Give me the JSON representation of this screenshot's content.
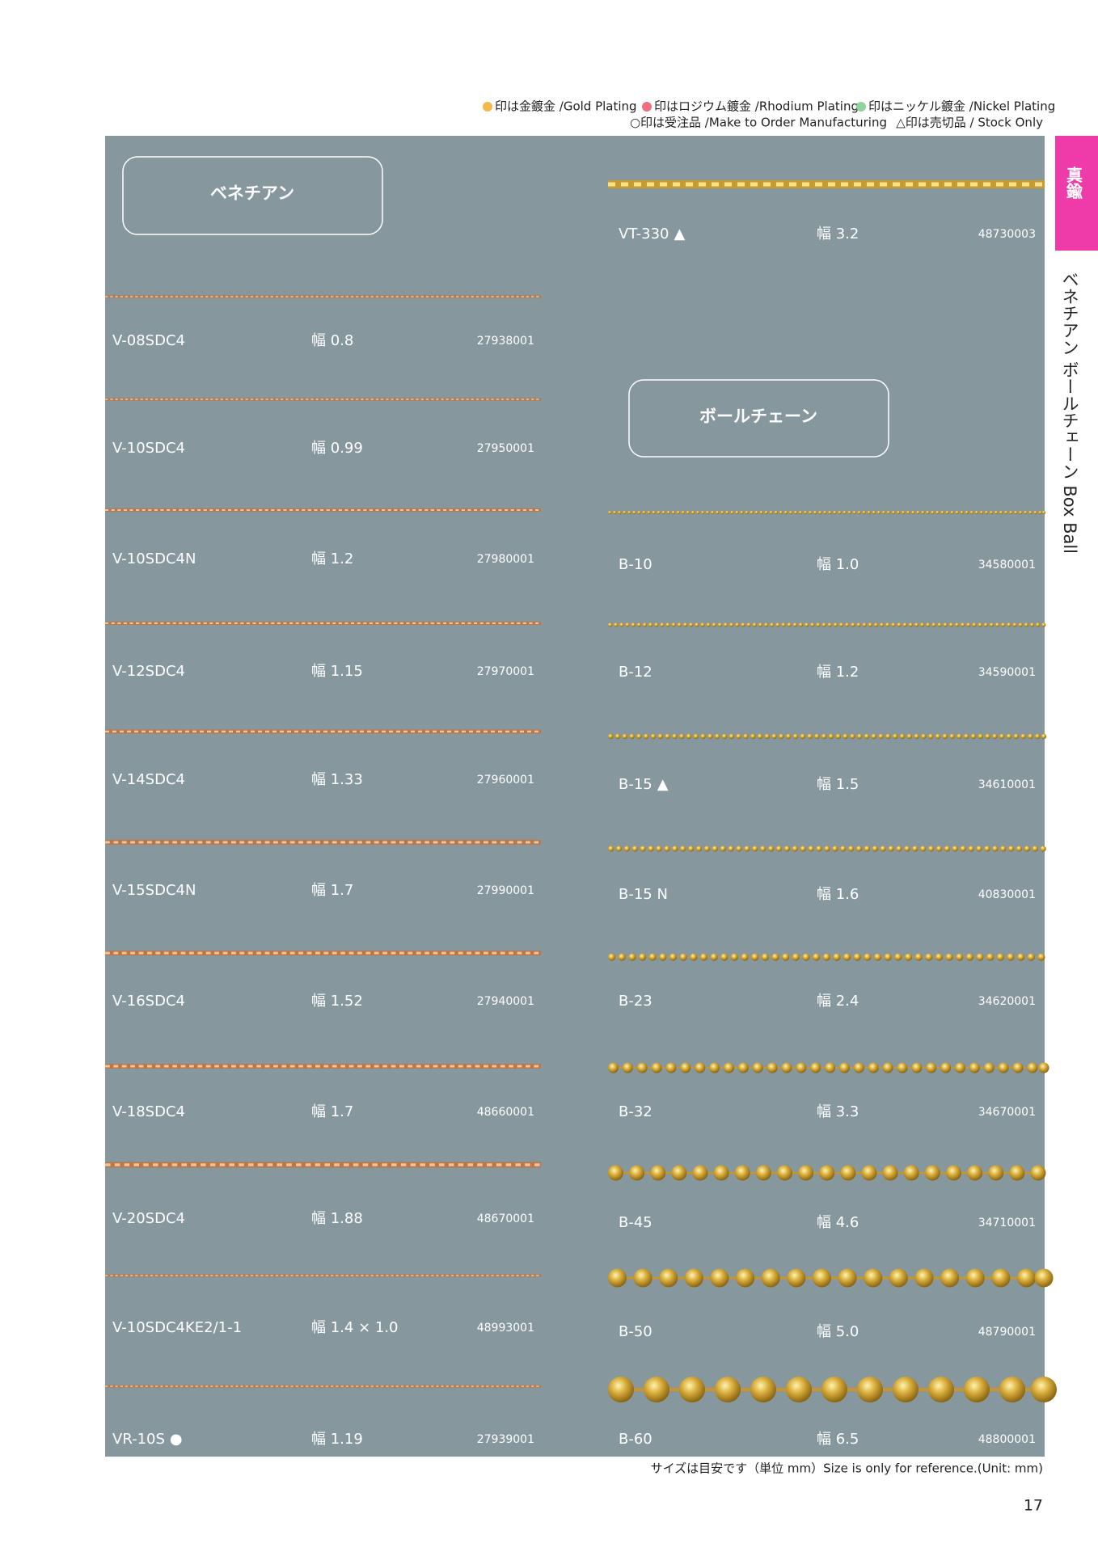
{
  "legend": {
    "gold": "印は金鍍金 /Gold Plating",
    "rhodium": "印はロジウム鍍金 /Rhodium Plating",
    "nickel": "印はニッケル鍍金 /Nickel Plating",
    "make_to_order": "○印は受注品 /Make to Order Manufacturing",
    "stock_only": "△印は売切品 / Stock Only"
  },
  "side_tab": "真鍮",
  "side_title": "ベネチアン ボールチェーン Box Ball",
  "venetian": {
    "title": "ベネチアン",
    "items": [
      {
        "code": "V-08SDC4",
        "width": "幅 0.8",
        "number": "27938001"
      },
      {
        "code": "V-10SDC4",
        "width": "幅 0.99",
        "number": "27950001"
      },
      {
        "code": "V-10SDC4N",
        "width": "幅 1.2",
        "number": "27980001"
      },
      {
        "code": "V-12SDC4",
        "width": "幅 1.15",
        "number": "27970001"
      },
      {
        "code": "V-14SDC4",
        "width": "幅 1.33",
        "number": "27960001"
      },
      {
        "code": "V-15SDC4N",
        "width": "幅 1.7",
        "number": "27990001"
      },
      {
        "code": "V-16SDC4",
        "width": "幅 1.52",
        "number": "27940001"
      },
      {
        "code": "V-18SDC4",
        "width": "幅 1.7",
        "number": "48660001"
      },
      {
        "code": "V-20SDC4",
        "width": "幅 1.88",
        "number": "48670001"
      },
      {
        "code": "V-10SDC4KE2/1-1",
        "width": "幅 1.4 × 1.0",
        "number": "48993001"
      },
      {
        "code": "VR-10S",
        "symbol": "●",
        "width": "幅 1.19",
        "number": "27939001"
      },
      {
        "code": "VT-330",
        "symbol": "▲",
        "width": "幅 3.2",
        "number": "48730003"
      }
    ]
  },
  "ball_chain": {
    "title": "ボールチェーン",
    "items": [
      {
        "code": "B-10",
        "width": "幅 1.0",
        "number": "34580001"
      },
      {
        "code": "B-12",
        "width": "幅 1.2",
        "number": "34590001"
      },
      {
        "code": "B-15",
        "symbol": "▲",
        "width": "幅 1.5",
        "number": "34610001"
      },
      {
        "code": "B-15 N",
        "width": "幅 1.6",
        "number": "40830001"
      },
      {
        "code": "B-23",
        "width": "幅 2.4",
        "number": "34620001"
      },
      {
        "code": "B-32",
        "width": "幅 3.3",
        "number": "34670001"
      },
      {
        "code": "B-45",
        "width": "幅 4.6",
        "number": "34710001"
      },
      {
        "code": "B-50",
        "width": "幅 5.0",
        "number": "48790001"
      },
      {
        "code": "B-60",
        "width": "幅 6.5",
        "number": "48800001"
      }
    ]
  },
  "footer_note": "サイズは目安です（単位 mm）Size is only for reference.(Unit: mm)",
  "page_number": "17"
}
